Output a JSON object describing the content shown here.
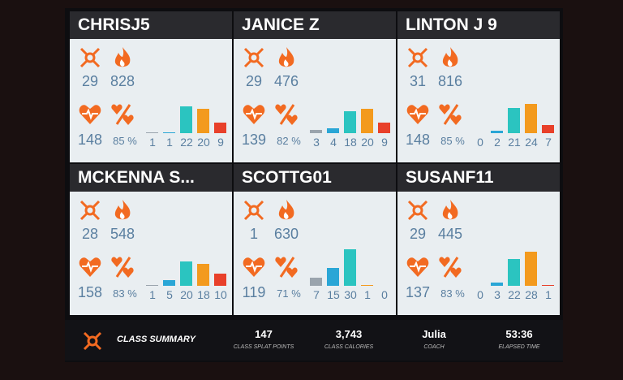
{
  "tiles": [
    {
      "name": "CHRISJ5",
      "splat": 29,
      "calories": 828,
      "heart_rate": 148,
      "percent": 85,
      "zones": [
        1,
        1,
        22,
        20,
        9
      ]
    },
    {
      "name": "JANICE Z",
      "splat": 29,
      "calories": 476,
      "heart_rate": 139,
      "percent": 82,
      "zones": [
        3,
        4,
        18,
        20,
        9
      ]
    },
    {
      "name": "LINTON J 9",
      "splat": 31,
      "calories": 816,
      "heart_rate": 148,
      "percent": 85,
      "zones": [
        0,
        2,
        21,
        24,
        7
      ]
    },
    {
      "name": "MCKENNA S...",
      "splat": 28,
      "calories": 548,
      "heart_rate": 158,
      "percent": 83,
      "zones": [
        1,
        5,
        20,
        18,
        10
      ]
    },
    {
      "name": "SCOTTG01",
      "splat": 1,
      "calories": 630,
      "heart_rate": 119,
      "percent": 71,
      "zones": [
        7,
        15,
        30,
        1,
        0
      ]
    },
    {
      "name": "SUSANF11",
      "splat": 29,
      "calories": 445,
      "heart_rate": 137,
      "percent": 83,
      "zones": [
        0,
        3,
        22,
        28,
        1
      ]
    }
  ],
  "percent_unit": "%",
  "zone_colors": [
    "#9aa4ad",
    "#2aa6d6",
    "#2bc4c0",
    "#f39a1e",
    "#e8402a"
  ],
  "summary": {
    "title": "CLASS SUMMARY",
    "items": [
      {
        "value": "147",
        "label": "CLASS SPLAT POINTS"
      },
      {
        "value": "3,743",
        "label": "CLASS CALORIES"
      },
      {
        "value": "Julia",
        "label": "COACH"
      },
      {
        "value": "53:36",
        "label": "ELAPSED TIME"
      }
    ]
  }
}
